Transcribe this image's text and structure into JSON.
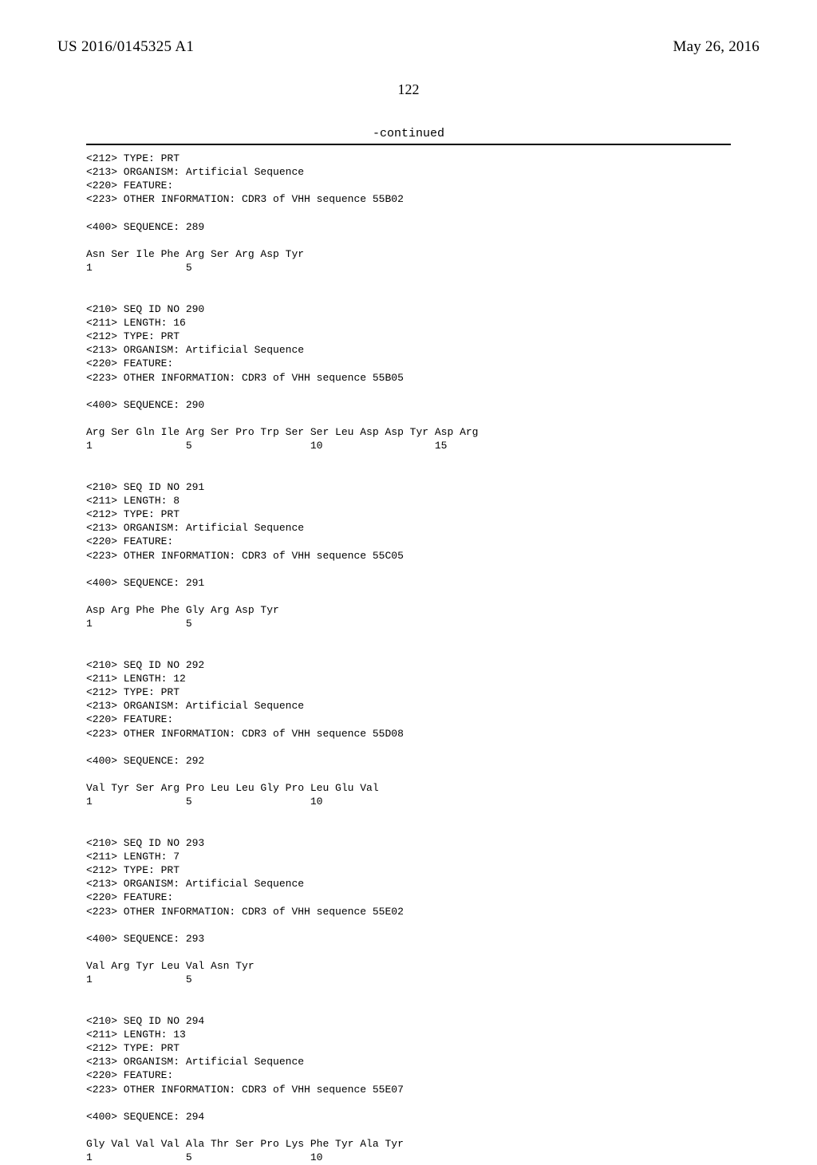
{
  "header": {
    "publication_number": "US 2016/0145325 A1",
    "publication_date": "May 26, 2016"
  },
  "page_number": "122",
  "continued_label": "-continued",
  "sequence_listing": "<212> TYPE: PRT\n<213> ORGANISM: Artificial Sequence\n<220> FEATURE:\n<223> OTHER INFORMATION: CDR3 of VHH sequence 55B02\n\n<400> SEQUENCE: 289\n\nAsn Ser Ile Phe Arg Ser Arg Asp Tyr\n1               5\n\n\n<210> SEQ ID NO 290\n<211> LENGTH: 16\n<212> TYPE: PRT\n<213> ORGANISM: Artificial Sequence\n<220> FEATURE:\n<223> OTHER INFORMATION: CDR3 of VHH sequence 55B05\n\n<400> SEQUENCE: 290\n\nArg Ser Gln Ile Arg Ser Pro Trp Ser Ser Leu Asp Asp Tyr Asp Arg\n1               5                   10                  15\n\n\n<210> SEQ ID NO 291\n<211> LENGTH: 8\n<212> TYPE: PRT\n<213> ORGANISM: Artificial Sequence\n<220> FEATURE:\n<223> OTHER INFORMATION: CDR3 of VHH sequence 55C05\n\n<400> SEQUENCE: 291\n\nAsp Arg Phe Phe Gly Arg Asp Tyr\n1               5\n\n\n<210> SEQ ID NO 292\n<211> LENGTH: 12\n<212> TYPE: PRT\n<213> ORGANISM: Artificial Sequence\n<220> FEATURE:\n<223> OTHER INFORMATION: CDR3 of VHH sequence 55D08\n\n<400> SEQUENCE: 292\n\nVal Tyr Ser Arg Pro Leu Leu Gly Pro Leu Glu Val\n1               5                   10\n\n\n<210> SEQ ID NO 293\n<211> LENGTH: 7\n<212> TYPE: PRT\n<213> ORGANISM: Artificial Sequence\n<220> FEATURE:\n<223> OTHER INFORMATION: CDR3 of VHH sequence 55E02\n\n<400> SEQUENCE: 293\n\nVal Arg Tyr Leu Val Asn Tyr\n1               5\n\n\n<210> SEQ ID NO 294\n<211> LENGTH: 13\n<212> TYPE: PRT\n<213> ORGANISM: Artificial Sequence\n<220> FEATURE:\n<223> OTHER INFORMATION: CDR3 of VHH sequence 55E07\n\n<400> SEQUENCE: 294\n\nGly Val Val Val Ala Thr Ser Pro Lys Phe Tyr Ala Tyr\n1               5                   10"
}
